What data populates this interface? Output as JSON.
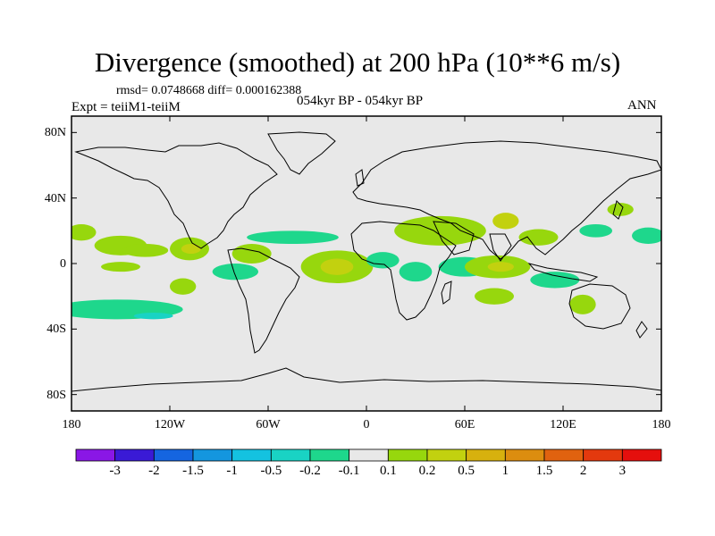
{
  "header": {
    "title": "Divergence (smoothed) at 200 hPa (10**6 m/s)",
    "stats": "rmsd= 0.0748668 diff= 0.000162388",
    "experiment": "Expt = teiiM1-teiiM",
    "period": "054kyr BP - 054kyr BP",
    "season": "ANN"
  },
  "axes": {
    "lat_labels": [
      "80N",
      "40N",
      "0",
      "40S",
      "80S"
    ],
    "lat_values": [
      80,
      40,
      0,
      -40,
      -80
    ],
    "lon_labels": [
      "180",
      "120W",
      "60W",
      "0",
      "60E",
      "120E",
      "180"
    ],
    "lon_values": [
      -180,
      -120,
      -60,
      0,
      60,
      120,
      180
    ]
  },
  "colorbar": {
    "labels": [
      "-3",
      "-2",
      "-1.5",
      "-1",
      "-0.5",
      "-0.2",
      "-0.1",
      "0.1",
      "0.2",
      "0.5",
      "1",
      "1.5",
      "2",
      "3"
    ],
    "colors": [
      "#8a17e6",
      "#3a1ad6",
      "#1565e0",
      "#1496df",
      "#14c2e0",
      "#19d3c4",
      "#1ed78c",
      "#e8e8e8",
      "#97d70d",
      "#c2d10f",
      "#d7b10e",
      "#dc8d0f",
      "#e0620f",
      "#e3390e",
      "#e50f0d"
    ]
  },
  "map": {
    "background": "#e8e8e8",
    "anomalies": [
      {
        "lon": -174,
        "lat": 19,
        "rlon": 9,
        "rlat": 5,
        "color": "#97d70d"
      },
      {
        "lon": -150,
        "lat": 11,
        "rlon": 16,
        "rlat": 6,
        "color": "#97d70d"
      },
      {
        "lon": -135,
        "lat": 8,
        "rlon": 14,
        "rlat": 4,
        "color": "#97d70d"
      },
      {
        "lon": -108,
        "lat": 9,
        "rlon": 12,
        "rlat": 7,
        "color": "#97d70d"
      },
      {
        "lon": -107,
        "lat": 9,
        "rlon": 6,
        "rlat": 3,
        "color": "#c2d10f"
      },
      {
        "lon": -70,
        "lat": 6,
        "rlon": 12,
        "rlat": 6,
        "color": "#97d70d"
      },
      {
        "lon": -45,
        "lat": 16,
        "rlon": 28,
        "rlat": 4,
        "color": "#1ed78c"
      },
      {
        "lon": -112,
        "lat": -14,
        "rlon": 8,
        "rlat": 5,
        "color": "#97d70d"
      },
      {
        "lon": -150,
        "lat": -2,
        "rlon": 12,
        "rlat": 3,
        "color": "#97d70d"
      },
      {
        "lon": -80,
        "lat": -5,
        "rlon": 14,
        "rlat": 5,
        "color": "#1ed78c"
      },
      {
        "lon": -18,
        "lat": -2,
        "rlon": 22,
        "rlat": 10,
        "color": "#97d70d"
      },
      {
        "lon": -18,
        "lat": -2,
        "rlon": 10,
        "rlat": 5,
        "color": "#c2d10f"
      },
      {
        "lon": 10,
        "lat": 2,
        "rlon": 10,
        "rlat": 5,
        "color": "#1ed78c"
      },
      {
        "lon": 45,
        "lat": 20,
        "rlon": 28,
        "rlat": 9,
        "color": "#97d70d"
      },
      {
        "lon": 85,
        "lat": 26,
        "rlon": 8,
        "rlat": 5,
        "color": "#c2d10f"
      },
      {
        "lon": 30,
        "lat": -5,
        "rlon": 10,
        "rlat": 6,
        "color": "#1ed78c"
      },
      {
        "lon": 60,
        "lat": -2,
        "rlon": 16,
        "rlat": 6,
        "color": "#1ed78c"
      },
      {
        "lon": 80,
        "lat": -2,
        "rlon": 20,
        "rlat": 7,
        "color": "#97d70d"
      },
      {
        "lon": 82,
        "lat": -2,
        "rlon": 8,
        "rlat": 3,
        "color": "#c2d10f"
      },
      {
        "lon": 115,
        "lat": -10,
        "rlon": 15,
        "rlat": 5,
        "color": "#1ed78c"
      },
      {
        "lon": 105,
        "lat": 16,
        "rlon": 12,
        "rlat": 5,
        "color": "#97d70d"
      },
      {
        "lon": 140,
        "lat": 20,
        "rlon": 10,
        "rlat": 4,
        "color": "#1ed78c"
      },
      {
        "lon": 155,
        "lat": 33,
        "rlon": 8,
        "rlat": 4,
        "color": "#97d70d"
      },
      {
        "lon": 172,
        "lat": 17,
        "rlon": 10,
        "rlat": 5,
        "color": "#1ed78c"
      },
      {
        "lon": 78,
        "lat": -20,
        "rlon": 12,
        "rlat": 5,
        "color": "#97d70d"
      },
      {
        "lon": 132,
        "lat": -25,
        "rlon": 8,
        "rlat": 6,
        "color": "#97d70d"
      },
      {
        "lon": -152,
        "lat": -28,
        "rlon": 40,
        "rlat": 6,
        "color": "#1ed78c"
      },
      {
        "lon": -130,
        "lat": -32,
        "rlon": 12,
        "rlat": 2,
        "color": "#19d3c4"
      }
    ]
  }
}
